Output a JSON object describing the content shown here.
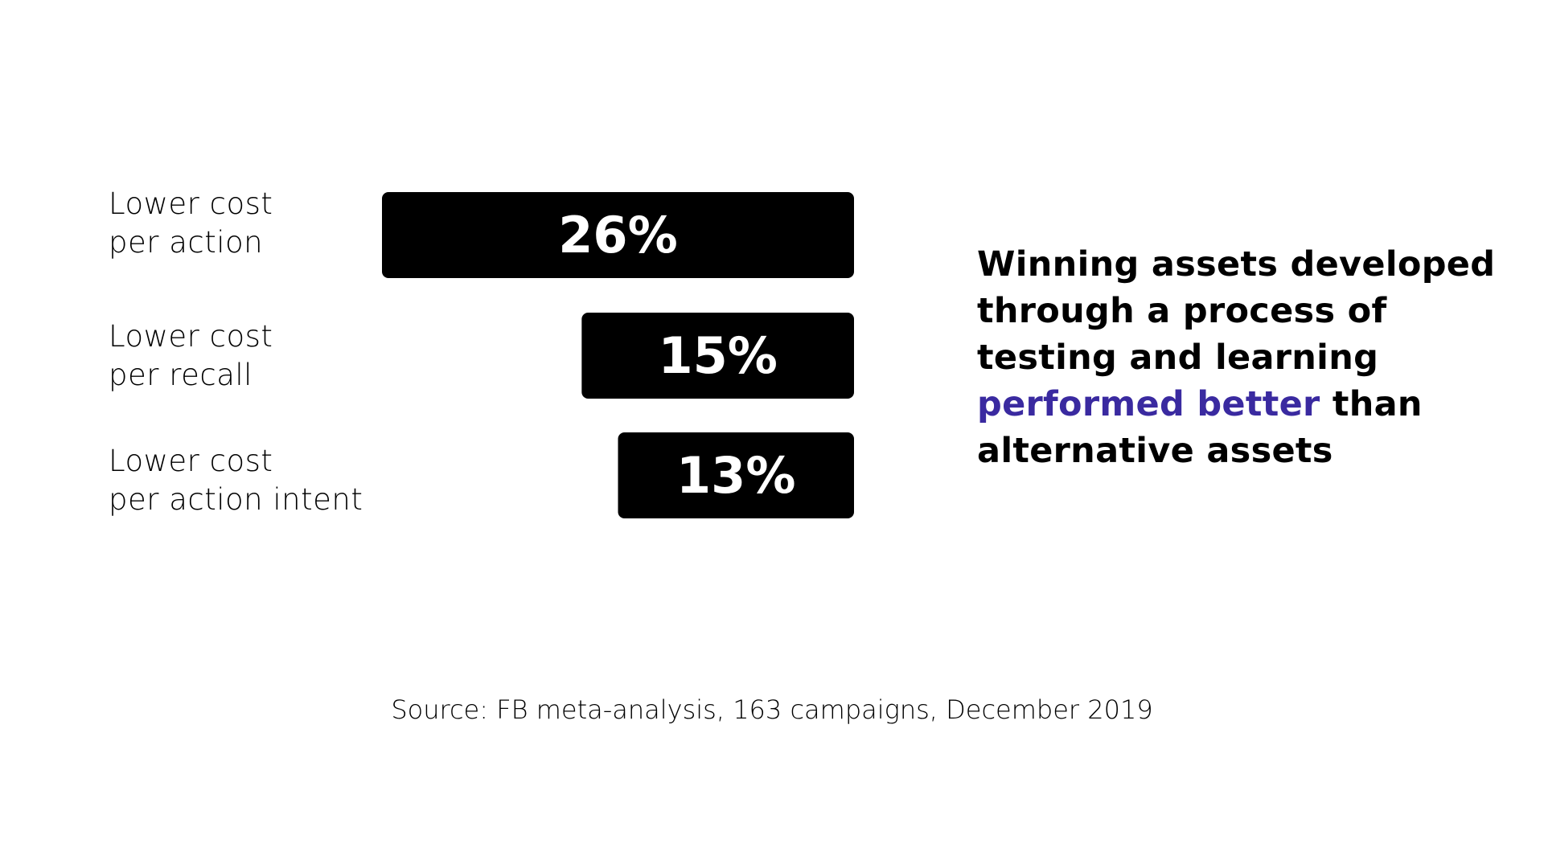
{
  "chart_data": {
    "type": "bar",
    "orientation": "horizontal",
    "categories": [
      [
        "Lower cost",
        "per action"
      ],
      [
        "Lower cost",
        "per recall"
      ],
      [
        "Lower cost",
        "per action intent"
      ]
    ],
    "values": [
      26,
      15,
      13
    ],
    "data_labels": [
      "26%",
      "15%",
      "13%"
    ],
    "bar_color": "#000000",
    "label_color": "#ffffff",
    "title": "",
    "xlabel": "",
    "ylabel": "",
    "xlim": [
      0,
      26
    ],
    "grid": false,
    "legend": "none"
  },
  "headline": {
    "line1": "Winning assets developed",
    "line2": "through a process of",
    "line3": "testing and learning",
    "line4_highlight": "performed better",
    "line4_rest": " than",
    "line5": "alternative assets",
    "highlight_color": "#3a2aa0"
  },
  "source": {
    "text": "Source: FB meta-analysis, 163 campaigns, December 2019"
  }
}
